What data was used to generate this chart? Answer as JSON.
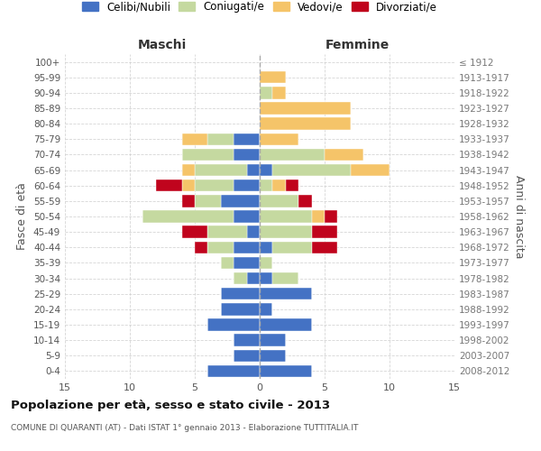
{
  "age_groups": [
    "0-4",
    "5-9",
    "10-14",
    "15-19",
    "20-24",
    "25-29",
    "30-34",
    "35-39",
    "40-44",
    "45-49",
    "50-54",
    "55-59",
    "60-64",
    "65-69",
    "70-74",
    "75-79",
    "80-84",
    "85-89",
    "90-94",
    "95-99",
    "100+"
  ],
  "birth_years": [
    "2008-2012",
    "2003-2007",
    "1998-2002",
    "1993-1997",
    "1988-1992",
    "1983-1987",
    "1978-1982",
    "1973-1977",
    "1968-1972",
    "1963-1967",
    "1958-1962",
    "1953-1957",
    "1948-1952",
    "1943-1947",
    "1938-1942",
    "1933-1937",
    "1928-1932",
    "1923-1927",
    "1918-1922",
    "1913-1917",
    "≤ 1912"
  ],
  "colors": {
    "celibe": "#4472C4",
    "coniugato": "#C5D9A0",
    "vedovo": "#F5C469",
    "divorziato": "#C0041D"
  },
  "maschi": {
    "celibe": [
      4,
      2,
      2,
      4,
      3,
      3,
      1,
      2,
      2,
      1,
      2,
      3,
      2,
      1,
      2,
      2,
      0,
      0,
      0,
      0,
      0
    ],
    "coniugato": [
      0,
      0,
      0,
      0,
      0,
      0,
      1,
      1,
      2,
      3,
      7,
      2,
      3,
      4,
      4,
      2,
      0,
      0,
      0,
      0,
      0
    ],
    "vedovo": [
      0,
      0,
      0,
      0,
      0,
      0,
      0,
      0,
      0,
      0,
      0,
      0,
      1,
      1,
      0,
      2,
      0,
      0,
      0,
      0,
      0
    ],
    "divorziato": [
      0,
      0,
      0,
      0,
      0,
      0,
      0,
      0,
      1,
      2,
      0,
      1,
      2,
      0,
      0,
      0,
      0,
      0,
      0,
      0,
      0
    ]
  },
  "femmine": {
    "nubile": [
      4,
      2,
      2,
      4,
      1,
      4,
      1,
      0,
      1,
      0,
      0,
      0,
      0,
      1,
      0,
      0,
      0,
      0,
      0,
      0,
      0
    ],
    "coniugata": [
      0,
      0,
      0,
      0,
      0,
      0,
      2,
      1,
      3,
      4,
      4,
      3,
      1,
      6,
      5,
      0,
      0,
      0,
      1,
      0,
      0
    ],
    "vedova": [
      0,
      0,
      0,
      0,
      0,
      0,
      0,
      0,
      0,
      0,
      1,
      0,
      1,
      3,
      3,
      3,
      7,
      7,
      1,
      2,
      0
    ],
    "divorziata": [
      0,
      0,
      0,
      0,
      0,
      0,
      0,
      0,
      2,
      2,
      1,
      1,
      1,
      0,
      0,
      0,
      0,
      0,
      0,
      0,
      0
    ]
  },
  "xlim": 15,
  "title": "Popolazione per età, sesso e stato civile - 2013",
  "subtitle": "COMUNE DI QUARANTI (AT) - Dati ISTAT 1° gennaio 2013 - Elaborazione TUTTITALIA.IT",
  "ylabel_left": "Fasce di età",
  "ylabel_right": "Anni di nascita",
  "xlabel_left": "Maschi",
  "xlabel_right": "Femmine",
  "legend_labels": [
    "Celibi/Nubili",
    "Coniugati/e",
    "Vedovi/e",
    "Divorziati/e"
  ],
  "grid_color": "#cccccc"
}
